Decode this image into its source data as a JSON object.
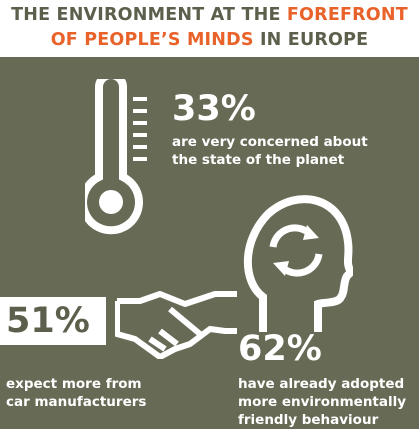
{
  "header": {
    "title": [
      [
        {
          "text": "THE ENVIRONMENT AT THE ",
          "highlight": false
        },
        {
          "text": "FOREFRONT",
          "highlight": true
        }
      ],
      [
        {
          "text": "OF PEOPLE’S MINDS",
          "highlight": true
        },
        {
          "text": " IN EUROPE",
          "highlight": false
        }
      ]
    ]
  },
  "stats": [
    {
      "figure": "33%",
      "lines": [
        "are very concerned about",
        "the state of the planet"
      ]
    },
    {
      "figure": "51%",
      "lines": [
        "expect more from",
        "car manufacturers"
      ]
    },
    {
      "figure": "62%",
      "lines": [
        "have already adopted",
        "more environmentally",
        "friendly behaviour"
      ]
    }
  ]
}
